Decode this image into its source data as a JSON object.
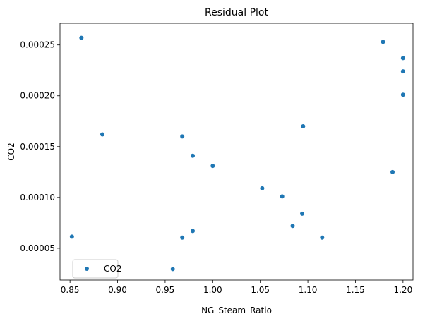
{
  "chart_data": {
    "type": "scatter",
    "title": "Residual Plot",
    "xlabel": "NG_Steam_Ratio",
    "ylabel": "CO2",
    "xlim": [
      0.8395,
      1.2105
    ],
    "ylim": [
      1.87e-05,
      0.0002713
    ],
    "xticks": [
      0.85,
      0.9,
      0.95,
      1.0,
      1.05,
      1.1,
      1.15,
      1.2
    ],
    "xtick_labels": [
      "0.85",
      "0.90",
      "0.95",
      "1.00",
      "1.05",
      "1.10",
      "1.15",
      "1.20"
    ],
    "yticks": [
      5e-05,
      0.0001,
      0.00015,
      0.0002,
      0.00025
    ],
    "ytick_labels": [
      "0.00005",
      "0.00010",
      "0.00015",
      "0.00020",
      "0.00025"
    ],
    "grid": false,
    "legend": {
      "placement": "lower-left",
      "entries": [
        "CO2"
      ]
    },
    "series": [
      {
        "name": "CO2",
        "color": "#1f77b4",
        "points": [
          [
            0.862,
            0.000257
          ],
          [
            0.884,
            0.000162
          ],
          [
            0.852,
            6.15e-05
          ],
          [
            0.968,
            0.00016
          ],
          [
            0.979,
            0.000141
          ],
          [
            1.0,
            0.000131
          ],
          [
            0.968,
            6.05e-05
          ],
          [
            0.979,
            6.7e-05
          ],
          [
            0.958,
            2.95e-05
          ],
          [
            1.052,
            0.000109
          ],
          [
            1.073,
            0.000101
          ],
          [
            1.095,
            0.00017
          ],
          [
            1.094,
            8.4e-05
          ],
          [
            1.084,
            7.2e-05
          ],
          [
            1.115,
            6.05e-05
          ],
          [
            1.179,
            0.000253
          ],
          [
            1.2,
            0.000237
          ],
          [
            1.2,
            0.000224
          ],
          [
            1.2,
            0.000201
          ],
          [
            1.189,
            0.000125
          ]
        ]
      }
    ]
  }
}
